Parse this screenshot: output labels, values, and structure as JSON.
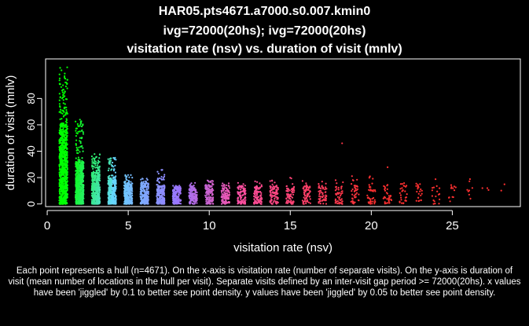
{
  "titles": {
    "line1": "HAR05.pts4671.a7000.s0.007.kmin0",
    "line2": "ivg=72000(20hs); ivg=72000(20hs)",
    "line3": "visitation rate (nsv) vs. duration of visit (mnlv)"
  },
  "caption": "Each point represents a hull (n=4671). On the x-axis is visitation rate (number of separate visits). On the y-axis is duration of visit (mean number of locations in the hull per visit). Separate visits defined by an inter-visit gap period >= 72000(20hs). x values have been 'jiggled' by 0.1 to better see point density. y values have been 'jiggled' by 0.05 to better see point density.",
  "chart_data": {
    "type": "scatter",
    "title": "visitation rate (nsv) vs. duration of visit (mnlv)",
    "xlabel": "visitation rate (nsv)",
    "ylabel": "duration of visit (mnlv)",
    "xlim": [
      -0.1,
      29.2
    ],
    "ylim": [
      -2,
      110
    ],
    "x_ticks": [
      0,
      5,
      10,
      15,
      20,
      25
    ],
    "y_ticks": [
      0,
      20,
      40,
      60,
      80
    ],
    "grid": false,
    "n_points": 4671,
    "color_scale": [
      "#00ff00",
      "#66d9ff",
      "#9977ff",
      "#ff4fa0",
      "#ff3030"
    ],
    "clusters": [
      {
        "x": 1,
        "count": 900,
        "y_min": 0,
        "y_max": 104,
        "y_median": 30
      },
      {
        "x": 2,
        "count": 650,
        "y_min": 0,
        "y_max": 64,
        "y_median": 16
      },
      {
        "x": 3,
        "count": 480,
        "y_min": 0,
        "y_max": 38,
        "y_median": 12
      },
      {
        "x": 4,
        "count": 380,
        "y_min": 0,
        "y_max": 36,
        "y_median": 10
      },
      {
        "x": 5,
        "count": 300,
        "y_min": 0,
        "y_max": 22,
        "y_median": 8
      },
      {
        "x": 6,
        "count": 250,
        "y_min": 0,
        "y_max": 20,
        "y_median": 8
      },
      {
        "x": 7,
        "count": 210,
        "y_min": 0,
        "y_max": 26,
        "y_median": 7
      },
      {
        "x": 8,
        "count": 170,
        "y_min": 0,
        "y_max": 14,
        "y_median": 7
      },
      {
        "x": 9,
        "count": 150,
        "y_min": 0,
        "y_max": 16,
        "y_median": 7
      },
      {
        "x": 10,
        "count": 130,
        "y_min": 0,
        "y_max": 18,
        "y_median": 7
      },
      {
        "x": 11,
        "count": 115,
        "y_min": 0,
        "y_max": 16,
        "y_median": 7
      },
      {
        "x": 12,
        "count": 100,
        "y_min": 0,
        "y_max": 16,
        "y_median": 7
      },
      {
        "x": 13,
        "count": 90,
        "y_min": 0,
        "y_max": 18,
        "y_median": 7
      },
      {
        "x": 14,
        "count": 80,
        "y_min": 0,
        "y_max": 18,
        "y_median": 7
      },
      {
        "x": 15,
        "count": 70,
        "y_min": 0,
        "y_max": 20,
        "y_median": 7
      },
      {
        "x": 16,
        "count": 62,
        "y_min": 0,
        "y_max": 18,
        "y_median": 7
      },
      {
        "x": 17,
        "count": 55,
        "y_min": 0,
        "y_max": 18,
        "y_median": 7
      },
      {
        "x": 18,
        "count": 48,
        "y_min": 0,
        "y_max": 20,
        "y_median": 7
      },
      {
        "x": 19,
        "count": 42,
        "y_min": 0,
        "y_max": 24,
        "y_median": 7
      },
      {
        "x": 20,
        "count": 38,
        "y_min": 0,
        "y_max": 24,
        "y_median": 8
      },
      {
        "x": 21,
        "count": 33,
        "y_min": 0,
        "y_max": 30,
        "y_median": 8
      },
      {
        "x": 22,
        "count": 28,
        "y_min": 0,
        "y_max": 22,
        "y_median": 8
      },
      {
        "x": 23,
        "count": 22,
        "y_min": 0,
        "y_max": 18,
        "y_median": 8
      },
      {
        "x": 24,
        "count": 17,
        "y_min": 0,
        "y_max": 20,
        "y_median": 8
      },
      {
        "x": 25,
        "count": 12,
        "y_min": 2,
        "y_max": 16,
        "y_median": 8
      },
      {
        "x": 26,
        "count": 8,
        "y_min": 4,
        "y_max": 20,
        "y_median": 10
      },
      {
        "x": 27,
        "count": 3,
        "y_min": 8,
        "y_max": 12,
        "y_median": 9
      },
      {
        "x": 28,
        "count": 2,
        "y_min": 10,
        "y_max": 16,
        "y_median": 13
      }
    ],
    "outliers": [
      {
        "x": 18.2,
        "y": 46
      }
    ]
  }
}
